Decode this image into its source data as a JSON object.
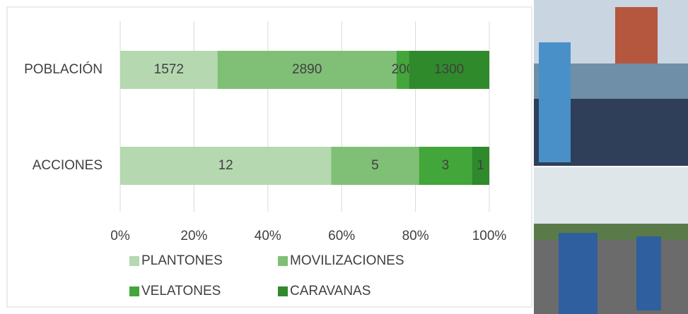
{
  "chart_data": {
    "type": "bar",
    "orientation": "horizontal",
    "stacked": "percent",
    "categories": [
      "POBLACIÓN",
      "ACCIONES"
    ],
    "series": [
      {
        "name": "PLANTONES",
        "color": "#b5d8b0",
        "values": [
          1572,
          12
        ]
      },
      {
        "name": "MOVILIZACIONES",
        "color": "#80bf76",
        "values": [
          2890,
          5
        ]
      },
      {
        "name": "VELATONES",
        "color": "#43a63a",
        "values": [
          200,
          3
        ]
      },
      {
        "name": "CARAVANAS",
        "color": "#2f8a2b",
        "values": [
          1300,
          1
        ]
      }
    ],
    "xlim": [
      0,
      100
    ],
    "xticks": [
      {
        "value": 0,
        "label": "0%"
      },
      {
        "value": 20,
        "label": "20%"
      },
      {
        "value": 40,
        "label": "40%"
      },
      {
        "value": 60,
        "label": "60%"
      },
      {
        "value": 80,
        "label": "80%"
      },
      {
        "value": 100,
        "label": "100%"
      }
    ],
    "grid": true,
    "legend": "bottom"
  }
}
